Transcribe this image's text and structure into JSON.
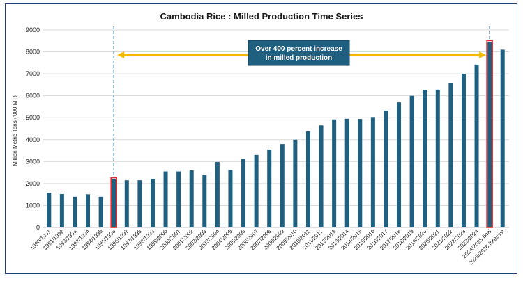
{
  "chart_data": {
    "type": "bar",
    "title": "Cambodia Rice : Milled Production Time Series",
    "xlabel": "",
    "ylabel": "Million Metric Tons ('000 MT)",
    "ylim": [
      0,
      9000
    ],
    "yticks": [
      0,
      1000,
      2000,
      3000,
      4000,
      5000,
      6000,
      7000,
      8000,
      9000
    ],
    "grid": true,
    "legend": "none",
    "bar_color": "#1f5f80",
    "highlight_color": "#e8262a",
    "categories": [
      "1990/1991",
      "1991/1992",
      "1992/1993",
      "1993/1994",
      "1994/1995",
      "1995/1996",
      "1996/1997",
      "1997/1998",
      "1998/1999",
      "1999/2000",
      "2000/2001",
      "2001/2002",
      "2002/2003",
      "2003/2004",
      "2004/2005",
      "2005/2006",
      "2006/2007",
      "2007/2008",
      "2008/2009",
      "2009/2010",
      "2010/2011",
      "2011/2012",
      "2012/2013",
      "2013/2014",
      "2014/2015",
      "2015/2016",
      "2016/2017",
      "2017/2018",
      "2018/2019",
      "2019/2020",
      "2020/2021",
      "2021/2022",
      "2022/2023",
      "2023/2024",
      "2024/2025 final",
      "2025/2026 forecast"
    ],
    "values": [
      1580,
      1520,
      1400,
      1510,
      1400,
      2200,
      2150,
      2150,
      2210,
      2550,
      2550,
      2600,
      2400,
      2980,
      2620,
      3120,
      3300,
      3550,
      3800,
      4000,
      4380,
      4650,
      4920,
      4950,
      4940,
      5030,
      5320,
      5700,
      6000,
      6270,
      6280,
      6560,
      7000,
      7420,
      8450,
      8100
    ],
    "highlighted": [
      "1995/1996",
      "2024/2025 final"
    ],
    "annotation": {
      "lines": [
        "Over 400 percent increase",
        "in milled production"
      ],
      "from": "1995/1996",
      "to": "2024/2025 final",
      "box_color": "#1f5f80",
      "arrow_color": "#f5b800"
    }
  }
}
